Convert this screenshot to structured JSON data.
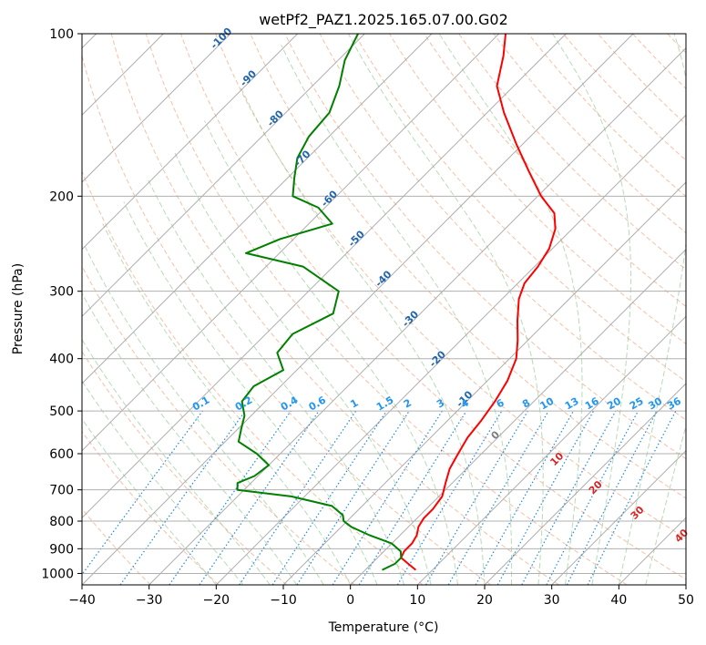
{
  "chart_data": {
    "type": "line",
    "title": "wetPf2_PAZ1.2025.165.07.00.G02",
    "xlabel": "Temperature (°C)",
    "ylabel": "Pressure (hPa)",
    "xlim": [
      -40,
      50
    ],
    "ylim": [
      1050,
      100
    ],
    "y_scale": "log",
    "x_ticks": [
      "−40",
      "−30",
      "−20",
      "−10",
      "0",
      "10",
      "20",
      "30",
      "40",
      "50"
    ],
    "y_ticks": [
      {
        "p": 100,
        "label": "100"
      },
      {
        "p": 200,
        "label": "200"
      },
      {
        "p": 300,
        "label": "300"
      },
      {
        "p": 400,
        "label": "400"
      },
      {
        "p": 500,
        "label": "500"
      },
      {
        "p": 600,
        "label": "600"
      },
      {
        "p": 700,
        "label": "700"
      },
      {
        "p": 800,
        "label": "800"
      },
      {
        "p": 900,
        "label": "900"
      },
      {
        "p": 1000,
        "label": "1000"
      }
    ],
    "grid": true,
    "colors": {
      "temperature": "#ff0000",
      "dewpoint": "#008000",
      "isotherm": "#a0a0a0",
      "dry_adiabat": "#f4a582",
      "moist_adiabat": "#99cc99",
      "mixing_ratio": "#1e88e5",
      "isotherm_label": "#2166ac",
      "mixing_label": "#2196f3",
      "theta_label": "#d62728"
    },
    "series": [
      {
        "name": "",
        "role": "temperature",
        "points": [
          {
            "p": 985,
            "t": 7.5
          },
          {
            "p": 960,
            "t": 5.5
          },
          {
            "p": 935,
            "t": 3.5
          },
          {
            "p": 910,
            "t": 3.0
          },
          {
            "p": 880,
            "t": 3.0
          },
          {
            "p": 850,
            "t": 2.5
          },
          {
            "p": 820,
            "t": 1.5
          },
          {
            "p": 790,
            "t": 1.0
          },
          {
            "p": 760,
            "t": 1.0
          },
          {
            "p": 720,
            "t": 0.5
          },
          {
            "p": 680,
            "t": -1.0
          },
          {
            "p": 640,
            "t": -2.5
          },
          {
            "p": 600,
            "t": -3.5
          },
          {
            "p": 560,
            "t": -4.5
          },
          {
            "p": 520,
            "t": -5.0
          },
          {
            "p": 480,
            "t": -5.8
          },
          {
            "p": 440,
            "t": -7.0
          },
          {
            "p": 400,
            "t": -9.0
          },
          {
            "p": 370,
            "t": -11.5
          },
          {
            "p": 340,
            "t": -14.5
          },
          {
            "p": 310,
            "t": -17.5
          },
          {
            "p": 290,
            "t": -19.0
          },
          {
            "p": 270,
            "t": -19.5
          },
          {
            "p": 250,
            "t": -20.5
          },
          {
            "p": 230,
            "t": -22.5
          },
          {
            "p": 215,
            "t": -25.0
          },
          {
            "p": 200,
            "t": -29.5
          },
          {
            "p": 180,
            "t": -35.0
          },
          {
            "p": 160,
            "t": -41.0
          },
          {
            "p": 140,
            "t": -47.5
          },
          {
            "p": 125,
            "t": -52.5
          },
          {
            "p": 110,
            "t": -56.0
          },
          {
            "p": 100,
            "t": -59.0
          }
        ]
      },
      {
        "name": "",
        "role": "dewpoint",
        "points": [
          {
            "p": 985,
            "t": 2.5
          },
          {
            "p": 960,
            "t": 3.5
          },
          {
            "p": 935,
            "t": 3.5
          },
          {
            "p": 910,
            "t": 2.5
          },
          {
            "p": 880,
            "t": 0.0
          },
          {
            "p": 850,
            "t": -4.5
          },
          {
            "p": 820,
            "t": -8.5
          },
          {
            "p": 800,
            "t": -10.5
          },
          {
            "p": 780,
            "t": -11.5
          },
          {
            "p": 750,
            "t": -14.5
          },
          {
            "p": 720,
            "t": -22.0
          },
          {
            "p": 700,
            "t": -31.0
          },
          {
            "p": 680,
            "t": -32.0
          },
          {
            "p": 660,
            "t": -30.5
          },
          {
            "p": 630,
            "t": -30.0
          },
          {
            "p": 600,
            "t": -33.5
          },
          {
            "p": 570,
            "t": -38.0
          },
          {
            "p": 540,
            "t": -39.5
          },
          {
            "p": 510,
            "t": -41.0
          },
          {
            "p": 480,
            "t": -43.5
          },
          {
            "p": 450,
            "t": -44.0
          },
          {
            "p": 420,
            "t": -42.0
          },
          {
            "p": 390,
            "t": -45.5
          },
          {
            "p": 360,
            "t": -46.0
          },
          {
            "p": 330,
            "t": -43.0
          },
          {
            "p": 300,
            "t": -45.5
          },
          {
            "p": 270,
            "t": -54.5
          },
          {
            "p": 255,
            "t": -65.0
          },
          {
            "p": 240,
            "t": -62.0
          },
          {
            "p": 225,
            "t": -56.5
          },
          {
            "p": 210,
            "t": -61.0
          },
          {
            "p": 200,
            "t": -66.5
          },
          {
            "p": 185,
            "t": -69.0
          },
          {
            "p": 170,
            "t": -71.5
          },
          {
            "p": 155,
            "t": -73.0
          },
          {
            "p": 140,
            "t": -73.5
          },
          {
            "p": 125,
            "t": -76.0
          },
          {
            "p": 112,
            "t": -79.0
          },
          {
            "p": 100,
            "t": -81.0
          }
        ]
      }
    ],
    "isotherm_labels": [
      {
        "t": -100,
        "text": "-100"
      },
      {
        "t": -90,
        "text": "-90"
      },
      {
        "t": -80,
        "text": "-80"
      },
      {
        "t": -70,
        "text": "-70"
      },
      {
        "t": -60,
        "text": "-60"
      },
      {
        "t": -50,
        "text": "-50"
      },
      {
        "t": -40,
        "text": "-40"
      },
      {
        "t": -30,
        "text": "-30"
      },
      {
        "t": -20,
        "text": "-20"
      },
      {
        "t": -10,
        "text": "-10"
      },
      {
        "t": 0,
        "text": "0"
      }
    ],
    "mixing_ratio_labels": [
      {
        "w": 0.1,
        "text": "0.1"
      },
      {
        "w": 0.2,
        "text": "0.2"
      },
      {
        "w": 0.4,
        "text": "0.4"
      },
      {
        "w": 0.6,
        "text": "0.6"
      },
      {
        "w": 1,
        "text": "1"
      },
      {
        "w": 1.5,
        "text": "1.5"
      },
      {
        "w": 2,
        "text": "2"
      },
      {
        "w": 3,
        "text": "3"
      },
      {
        "w": 4,
        "text": "4"
      },
      {
        "w": 6,
        "text": "6"
      },
      {
        "w": 8,
        "text": "8"
      },
      {
        "w": 10,
        "text": "10"
      },
      {
        "w": 13,
        "text": "13"
      },
      {
        "w": 16,
        "text": "16"
      },
      {
        "w": 20,
        "text": "20"
      },
      {
        "w": 25,
        "text": "25"
      },
      {
        "w": 30,
        "text": "30"
      },
      {
        "w": 36,
        "text": "36"
      }
    ],
    "theta_labels": [
      {
        "t": 10,
        "text": "10"
      },
      {
        "t": 20,
        "text": "20"
      },
      {
        "t": 30,
        "text": "30"
      },
      {
        "t": 40,
        "text": "40"
      }
    ]
  }
}
